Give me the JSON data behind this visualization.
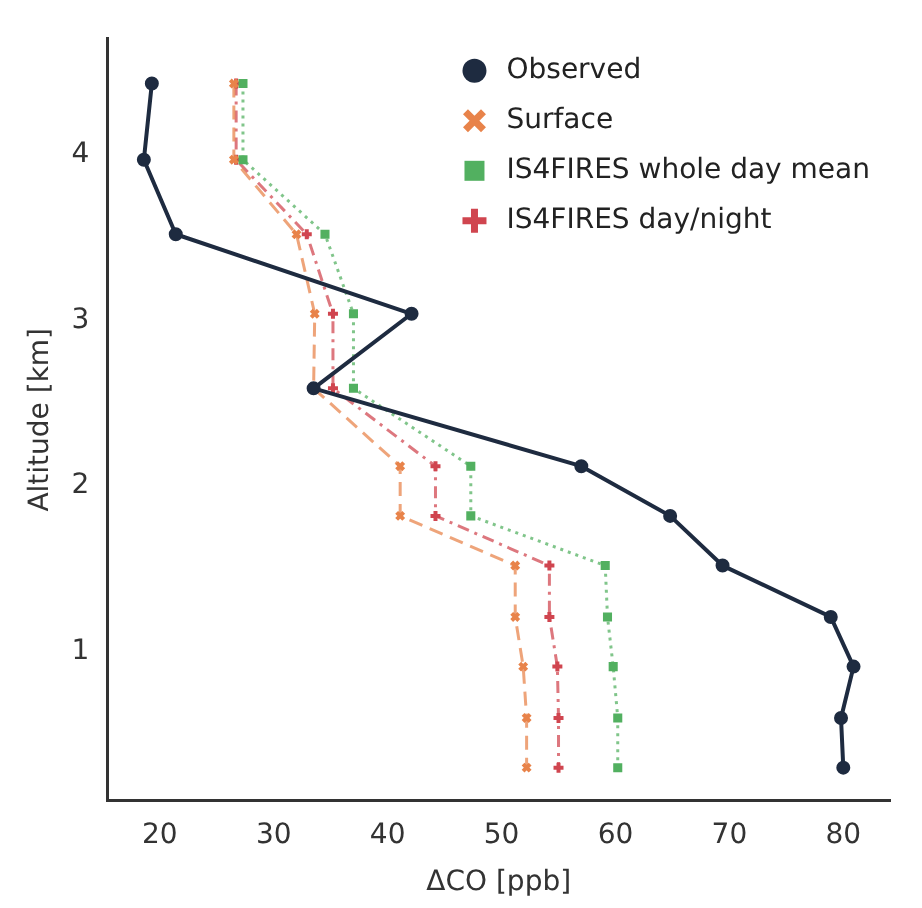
{
  "chart_data": {
    "type": "line",
    "xlabel": "ΔCO [ppb]",
    "ylabel": "Altitude [km]",
    "xlim": [
      15.4,
      84.1
    ],
    "ylim": [
      0.1,
      4.7
    ],
    "xticks": [
      20,
      30,
      40,
      50,
      60,
      70,
      80
    ],
    "yticks": [
      1,
      2,
      3,
      4
    ],
    "grid": false,
    "legend": "top right",
    "series": [
      {
        "name": "Observed",
        "color": "#1e2b40",
        "marker": "circle",
        "line_style": "solid",
        "x": [
          19.3,
          18.6,
          21.4,
          42.1,
          33.5,
          57.0,
          64.8,
          69.4,
          78.9,
          80.9,
          79.8,
          80.0
        ],
        "values": [
          4.43,
          3.97,
          3.52,
          3.04,
          2.59,
          2.12,
          1.82,
          1.52,
          1.21,
          0.91,
          0.6,
          0.3
        ]
      },
      {
        "name": "Surface",
        "color": "#e8834a",
        "marker": "cross",
        "line_style": "dashed",
        "x": [
          26.5,
          26.5,
          32.0,
          33.6,
          33.5,
          41.1,
          41.1,
          51.2,
          51.2,
          51.9,
          52.2,
          52.2
        ],
        "values": [
          4.43,
          3.97,
          3.52,
          3.04,
          2.59,
          2.12,
          1.82,
          1.52,
          1.21,
          0.91,
          0.6,
          0.3
        ]
      },
      {
        "name": "IS4FIRES whole day mean",
        "color": "#52b060",
        "marker": "square",
        "line_style": "dotted",
        "x": [
          27.3,
          27.3,
          34.5,
          37.0,
          37.0,
          47.3,
          47.3,
          59.1,
          59.3,
          59.8,
          60.2,
          60.2
        ],
        "values": [
          4.43,
          3.97,
          3.52,
          3.04,
          2.59,
          2.12,
          1.82,
          1.52,
          1.21,
          0.91,
          0.6,
          0.3
        ]
      },
      {
        "name": "IS4FIRES day/night",
        "color": "#d0454f",
        "marker": "plus",
        "line_style": "dashdot",
        "x": [
          26.7,
          26.7,
          32.9,
          35.2,
          35.2,
          44.2,
          44.2,
          54.2,
          54.2,
          54.9,
          55.0,
          55.0
        ],
        "values": [
          4.43,
          3.97,
          3.52,
          3.04,
          2.59,
          2.12,
          1.82,
          1.52,
          1.21,
          0.91,
          0.6,
          0.3
        ]
      }
    ]
  }
}
